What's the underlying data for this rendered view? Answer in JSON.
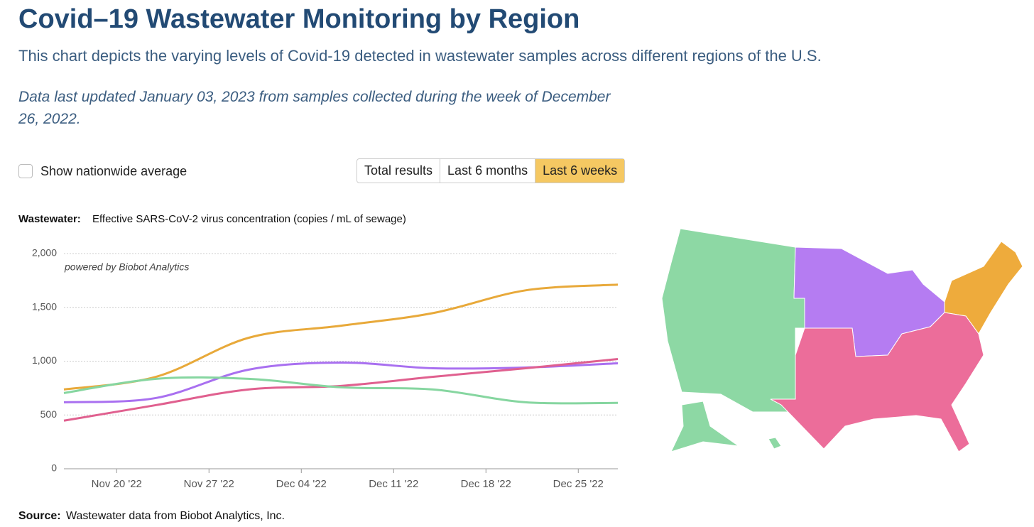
{
  "header": {
    "title": "Covid–19 Wastewater Monitoring by Region",
    "subtitle": "This chart depicts the varying levels of Covid-19 detected in wastewater samples across different regions of the U.S.",
    "updated": "Data last updated January 03, 2023 from samples collected during the week of December 26, 2022."
  },
  "controls": {
    "checkbox_label": "Show nationwide average",
    "buttons": [
      "Total results",
      "Last 6 months",
      "Last 6 weeks"
    ],
    "selected": 2
  },
  "chart_data": {
    "type": "line",
    "ylabel_lead": "Wastewater:",
    "ylabel": "Effective SARS-CoV-2 virus concentration (copies / mL of sewage)",
    "annotation": "powered by Biobot Analytics",
    "x": [
      "2022-11-16",
      "2022-11-23",
      "2022-11-30",
      "2022-12-07",
      "2022-12-14",
      "2022-12-21",
      "2022-12-28"
    ],
    "xlim": [
      "2022-11-16",
      "2022-12-28"
    ],
    "xticks": [
      {
        "value": "2022-11-20",
        "label": "Nov 20 '22"
      },
      {
        "value": "2022-11-27",
        "label": "Nov 27 '22"
      },
      {
        "value": "2022-12-04",
        "label": "Dec 04 '22"
      },
      {
        "value": "2022-12-11",
        "label": "Dec 11 '22"
      },
      {
        "value": "2022-12-18",
        "label": "Dec 18 '22"
      },
      {
        "value": "2022-12-25",
        "label": "Dec 25 '22"
      }
    ],
    "ylim": [
      0,
      2000
    ],
    "yticks": [
      0,
      500,
      {
        "value": 1000,
        "label": "1,000"
      },
      {
        "value": 1500,
        "label": "1,500"
      },
      {
        "value": 2000,
        "label": "2,000"
      }
    ],
    "grid": true,
    "series": [
      {
        "color": "#e8a93a",
        "values": [
          737,
          855,
          1217,
          1329,
          1447,
          1658,
          1711
        ]
      },
      {
        "color": "#a970f0",
        "values": [
          618,
          658,
          921,
          987,
          934,
          941,
          980
        ]
      },
      {
        "color": "#e0608f",
        "values": [
          447,
          592,
          737,
          770,
          855,
          934,
          1020
        ]
      },
      {
        "color": "#86d6a0",
        "values": [
          704,
          836,
          836,
          757,
          737,
          618,
          612
        ]
      }
    ]
  },
  "source": {
    "lead": "Source:",
    "text": "Wastewater data from Biobot Analytics, Inc."
  }
}
